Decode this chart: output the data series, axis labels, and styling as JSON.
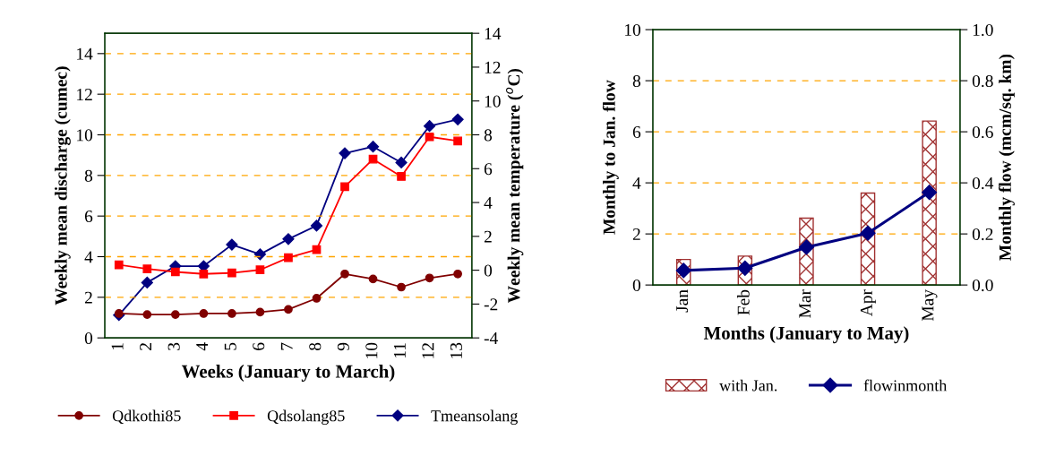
{
  "chart_data": [
    {
      "type": "line",
      "categories": [
        "1",
        "2",
        "3",
        "4",
        "5",
        "6",
        "7",
        "8",
        "9",
        "10",
        "11",
        "12",
        "13"
      ],
      "xlabel": "Weeks (January to March)",
      "ylabel": "Weekly mean discharge (cumec)",
      "y2label": "Weekly mean temperature ($^{o}$C)",
      "ylim": [
        0,
        15
      ],
      "yticks": [
        0,
        2,
        4,
        6,
        8,
        10,
        12,
        14
      ],
      "y2lim": [
        -4,
        14
      ],
      "y2ticks": [
        -4,
        -2,
        0,
        2,
        4,
        6,
        8,
        10,
        12,
        14
      ],
      "grid": "y",
      "legend": "bottom",
      "series": [
        {
          "name": "Qdkothi85",
          "color": "#800000",
          "marker": "circle",
          "values": [
            1.2,
            1.15,
            1.15,
            1.2,
            1.2,
            1.27,
            1.4,
            1.95,
            3.15,
            2.9,
            2.5,
            2.95,
            3.15
          ]
        },
        {
          "name": "Qdsolang85",
          "color": "#ff0000",
          "marker": "square",
          "values": [
            3.6,
            3.4,
            3.25,
            3.15,
            3.2,
            3.35,
            3.95,
            4.35,
            7.45,
            8.8,
            7.95,
            9.9,
            9.7
          ]
        },
        {
          "name": "Tmeansolang",
          "color": "#000080",
          "marker": "diamond",
          "axis": "y2",
          "values": [
            -2.65,
            -0.73,
            0.24,
            0.24,
            1.51,
            0.94,
            1.84,
            2.63,
            6.91,
            7.3,
            6.36,
            8.52,
            8.91
          ]
        }
      ]
    },
    {
      "type": "bar",
      "categories": [
        "Jan",
        "Feb",
        "Mar",
        "Apr",
        "May"
      ],
      "xlabel": "Months (January to May)",
      "ylabel": "Monthly to Jan. flow",
      "y2label": "Monthly flow (mcm/sq. km)",
      "ylim": [
        0,
        10
      ],
      "yticks": [
        0,
        2,
        4,
        6,
        8,
        10
      ],
      "y2lim": [
        0,
        1.0
      ],
      "y2ticks": [
        {
          "value": 0,
          "label": "0.0"
        },
        0.2,
        0.4,
        0.6,
        0.8,
        {
          "value": 1.0,
          "label": "1.0"
        }
      ],
      "grid": "y",
      "legend": "bottom",
      "series": [
        {
          "name": "with Jan.",
          "color": "#a03030",
          "values": [
            1.0,
            1.13,
            2.62,
            3.6,
            6.42
          ]
        },
        {
          "name": "flowinmonth",
          "type": "line",
          "color": "#000080",
          "marker": "diamond",
          "axis": "y2",
          "values": [
            0.057,
            0.066,
            0.148,
            0.203,
            0.363
          ]
        }
      ]
    }
  ]
}
